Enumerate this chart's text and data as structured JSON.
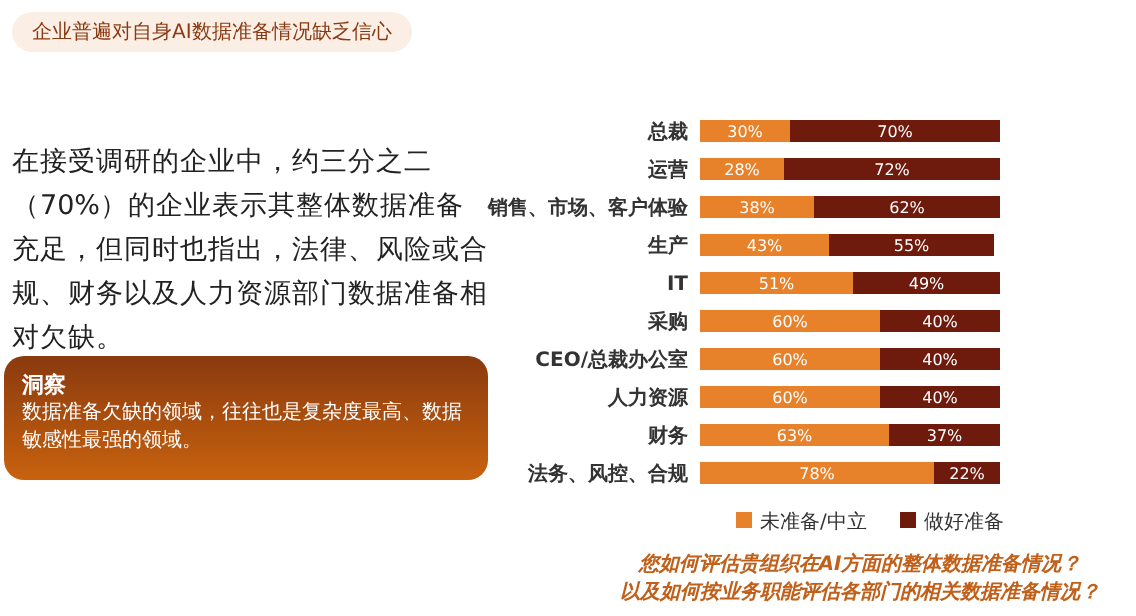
{
  "chart_data": {
    "type": "bar",
    "orientation": "horizontal",
    "stacked": true,
    "legend": "bottom",
    "tick_labels": "y",
    "title": "企业普遍对自身AI数据准备情况缺乏信心",
    "categories": [
      "总裁",
      "运营",
      "销售、市场、客户体验",
      "生产",
      "IT",
      "采购",
      "CEO/总裁办公室",
      "人力资源",
      "财务",
      "法务、风控、合规"
    ],
    "series": [
      {
        "name": "未准备/中立",
        "color": "#e8822a",
        "values": [
          30,
          28,
          38,
          43,
          51,
          60,
          60,
          60,
          63,
          78
        ],
        "value_labels": [
          "30%",
          "28%",
          "38%",
          "43%",
          "51%",
          "60%",
          "60%",
          "60%",
          "63%",
          "78%"
        ]
      },
      {
        "name": "做好准备",
        "color": "#6e1a0c",
        "values": [
          70,
          72,
          62,
          55,
          49,
          40,
          40,
          40,
          37,
          22
        ],
        "value_labels": [
          "70%",
          "72%",
          "62%",
          "55%",
          "49%",
          "40%",
          "40%",
          "40%",
          "37%",
          "22%"
        ]
      }
    ],
    "annotations": [
      "在接受调研的企业中，约三分之二（70%）的企业表示其整体数据准备充足，但同时也指出，法律、风险或合规、财务以及人力资源部门数据准备相对欠缺。",
      "洞察",
      "数据准备欠缺的领域，往往也是复杂度最高、数据敏感性最强的领域。",
      "您如何评估贵组织在AI方面的整体数据准备情况？",
      "以及如何按业务职能评估各部门的相关数据准备情况？"
    ]
  }
}
